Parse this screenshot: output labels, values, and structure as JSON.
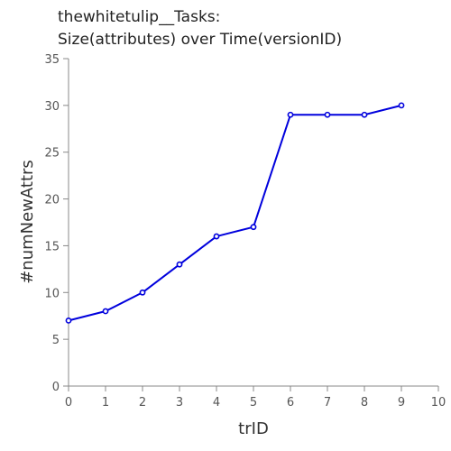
{
  "chart_data": {
    "type": "line",
    "title_lines": [
      "thewhitetulip__Tasks:",
      "Size(attributes) over Time(versionID)"
    ],
    "xlabel": "trID",
    "ylabel": "#numNewAttrs",
    "xlim": [
      0,
      10
    ],
    "ylim": [
      0,
      35
    ],
    "xticks": [
      0,
      1,
      2,
      3,
      4,
      5,
      6,
      7,
      8,
      9,
      10
    ],
    "yticks": [
      0,
      5,
      10,
      15,
      20,
      25,
      30,
      35
    ],
    "grid": false,
    "legend": "none",
    "series": [
      {
        "color": "#0000dd",
        "marker": "circle",
        "x": [
          0,
          1,
          2,
          3,
          4,
          5,
          6,
          7,
          8,
          9
        ],
        "y": [
          7,
          8,
          10,
          13,
          16,
          17,
          29,
          29,
          29,
          30
        ]
      }
    ]
  }
}
